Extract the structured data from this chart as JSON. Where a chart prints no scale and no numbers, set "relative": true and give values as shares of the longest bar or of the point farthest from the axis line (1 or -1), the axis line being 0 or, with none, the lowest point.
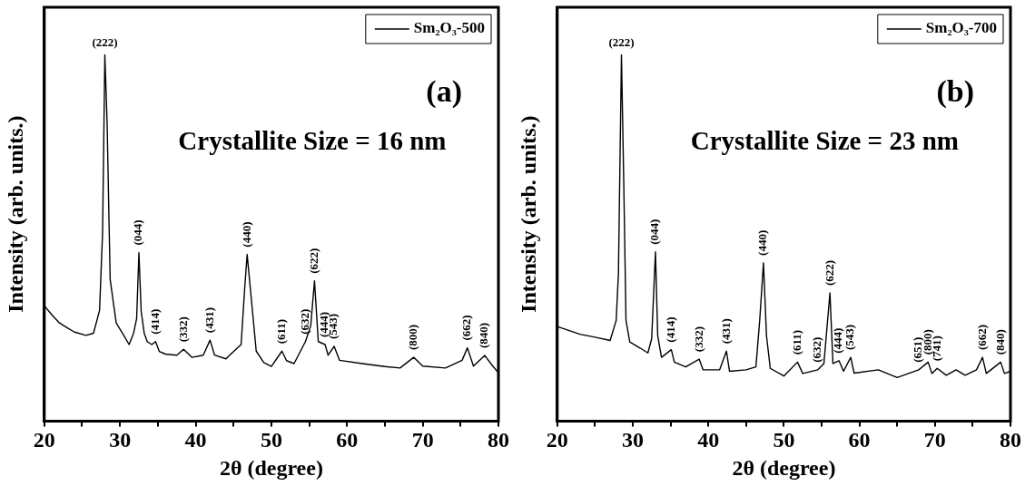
{
  "chart_data": [
    {
      "type": "line",
      "xlabel": "2θ (degree)",
      "ylabel": "Intensity (arb. units.)",
      "relative": true,
      "legend": "top right",
      "xlim": [
        20,
        80
      ],
      "xticks": [
        20,
        {
          "value": 25,
          "label": null
        },
        30,
        {
          "value": 35,
          "label": null
        },
        40,
        {
          "value": 45,
          "label": null
        },
        50,
        {
          "value": 55,
          "label": null
        },
        60,
        {
          "value": 65,
          "label": null
        },
        70,
        {
          "value": 75,
          "label": null
        },
        80
      ],
      "series": [
        {
          "name": "Sm₂O₃-500",
          "color": "#000000",
          "x": [
            20,
            21,
            22,
            23,
            24,
            25.5,
            26.5,
            27.3,
            27.7,
            28.0,
            28.3,
            28.7,
            29.5,
            30.5,
            31.2,
            31.8,
            32.2,
            32.5,
            32.8,
            33.2,
            33.6,
            34.2,
            34.7,
            35.2,
            36,
            37.5,
            38.4,
            39.5,
            41,
            41.9,
            42.5,
            44,
            45,
            46,
            46.5,
            46.8,
            47.3,
            48,
            49,
            50,
            51.4,
            52,
            53,
            54.5,
            55.2,
            55.7,
            56.2,
            57.1,
            57.5,
            58.3,
            59,
            62,
            65,
            67,
            68.8,
            70,
            73,
            75.2,
            75.9,
            76.7,
            78.2,
            79.3,
            80
          ],
          "values": [
            0.315,
            0.29,
            0.268,
            0.255,
            0.243,
            0.234,
            0.24,
            0.302,
            0.515,
            1.0,
            0.813,
            0.387,
            0.268,
            0.234,
            0.209,
            0.24,
            0.28,
            0.46,
            0.3,
            0.24,
            0.217,
            0.209,
            0.217,
            0.19,
            0.183,
            0.18,
            0.196,
            0.174,
            0.18,
            0.221,
            0.18,
            0.17,
            0.19,
            0.209,
            0.37,
            0.455,
            0.345,
            0.191,
            0.16,
            0.149,
            0.191,
            0.165,
            0.157,
            0.217,
            0.26,
            0.383,
            0.217,
            0.209,
            0.18,
            0.204,
            0.166,
            0.157,
            0.149,
            0.145,
            0.174,
            0.15,
            0.145,
            0.166,
            0.2,
            0.15,
            0.179,
            0.149,
            0.132
          ]
        }
      ],
      "annotations": [
        "(a)",
        "Crystallite Size = 16 nm",
        {
          "text": "(222)",
          "x": 28.0,
          "y": 1.0
        },
        {
          "text": "(044)",
          "x": 32.5,
          "y": 0.46
        },
        {
          "text": "(414)",
          "x": 34.7,
          "y": 0.217
        },
        {
          "text": "(332)",
          "x": 38.4,
          "y": 0.196
        },
        {
          "text": "(431)",
          "x": 41.9,
          "y": 0.221
        },
        {
          "text": "(440)",
          "x": 46.8,
          "y": 0.455
        },
        {
          "text": "(611)",
          "x": 51.4,
          "y": 0.191
        },
        {
          "text": "(632)",
          "x": 54.5,
          "y": 0.217
        },
        {
          "text": "(622)",
          "x": 55.7,
          "y": 0.383
        },
        {
          "text": "(444)",
          "x": 57.1,
          "y": 0.209
        },
        {
          "text": "(543)",
          "x": 58.3,
          "y": 0.204
        },
        {
          "text": "(800)",
          "x": 68.8,
          "y": 0.174
        },
        {
          "text": "(662)",
          "x": 75.9,
          "y": 0.2
        },
        {
          "text": "(840)",
          "x": 78.2,
          "y": 0.179
        }
      ]
    },
    {
      "type": "line",
      "xlabel": "2θ (degree)",
      "ylabel": "Intensity (arb. units.)",
      "relative": true,
      "legend": "top right",
      "xlim": [
        20,
        80
      ],
      "xticks": [
        20,
        {
          "value": 25,
          "label": null
        },
        30,
        {
          "value": 35,
          "label": null
        },
        40,
        {
          "value": 45,
          "label": null
        },
        50,
        {
          "value": 55,
          "label": null
        },
        60,
        {
          "value": 65,
          "label": null
        },
        70,
        {
          "value": 75,
          "label": null
        },
        80
      ],
      "series": [
        {
          "name": "Sm₂O₃-700",
          "color": "#000000",
          "x": [
            20,
            23,
            25,
            27,
            27.8,
            28.1,
            28.5,
            28.8,
            29.1,
            29.6,
            31,
            32,
            32.5,
            33.0,
            33.3,
            33.8,
            35.1,
            35.5,
            37,
            38.8,
            39.3,
            41.5,
            42.4,
            42.8,
            45,
            46.3,
            46.8,
            47.3,
            47.7,
            48.2,
            50,
            51.8,
            52.5,
            54.5,
            55.3,
            56.1,
            56.5,
            57.3,
            57.9,
            58.85,
            59.3,
            62.5,
            65,
            67.85,
            69.1,
            69.6,
            70.3,
            71.5,
            72.8,
            74,
            75.5,
            76.3,
            76.8,
            78.7,
            79.2,
            80
          ],
          "values": [
            0.258,
            0.237,
            0.229,
            0.22,
            0.275,
            0.403,
            1.0,
            0.657,
            0.275,
            0.216,
            0.199,
            0.186,
            0.225,
            0.462,
            0.233,
            0.174,
            0.195,
            0.161,
            0.148,
            0.169,
            0.14,
            0.14,
            0.191,
            0.136,
            0.14,
            0.148,
            0.275,
            0.432,
            0.233,
            0.144,
            0.123,
            0.161,
            0.13,
            0.14,
            0.157,
            0.35,
            0.157,
            0.165,
            0.136,
            0.174,
            0.131,
            0.14,
            0.119,
            0.14,
            0.161,
            0.13,
            0.144,
            0.125,
            0.14,
            0.125,
            0.14,
            0.174,
            0.13,
            0.161,
            0.13,
            0.136
          ]
        }
      ],
      "annotations": [
        "(b)",
        "Crystallite Size = 23 nm",
        {
          "text": "(222)",
          "x": 28.5,
          "y": 1.0
        },
        {
          "text": "(044)",
          "x": 33.0,
          "y": 0.462
        },
        {
          "text": "(414)",
          "x": 35.1,
          "y": 0.195
        },
        {
          "text": "(332)",
          "x": 38.8,
          "y": 0.169
        },
        {
          "text": "(431)",
          "x": 42.4,
          "y": 0.191
        },
        {
          "text": "(440)",
          "x": 47.3,
          "y": 0.432
        },
        {
          "text": "(611)",
          "x": 51.8,
          "y": 0.161
        },
        {
          "text": "(632)",
          "x": 54.5,
          "y": 0.14
        },
        {
          "text": "(622)",
          "x": 56.1,
          "y": 0.35
        },
        {
          "text": "(444)",
          "x": 57.3,
          "y": 0.165
        },
        {
          "text": "(543)",
          "x": 58.85,
          "y": 0.174
        },
        {
          "text": "(651)",
          "x": 67.85,
          "y": 0.14
        },
        {
          "text": "(800)",
          "x": 69.1,
          "y": 0.161
        },
        {
          "text": "(741)",
          "x": 70.3,
          "y": 0.144
        },
        {
          "text": "(662)",
          "x": 76.3,
          "y": 0.174
        },
        {
          "text": "(840)",
          "x": 78.7,
          "y": 0.161
        }
      ]
    }
  ]
}
